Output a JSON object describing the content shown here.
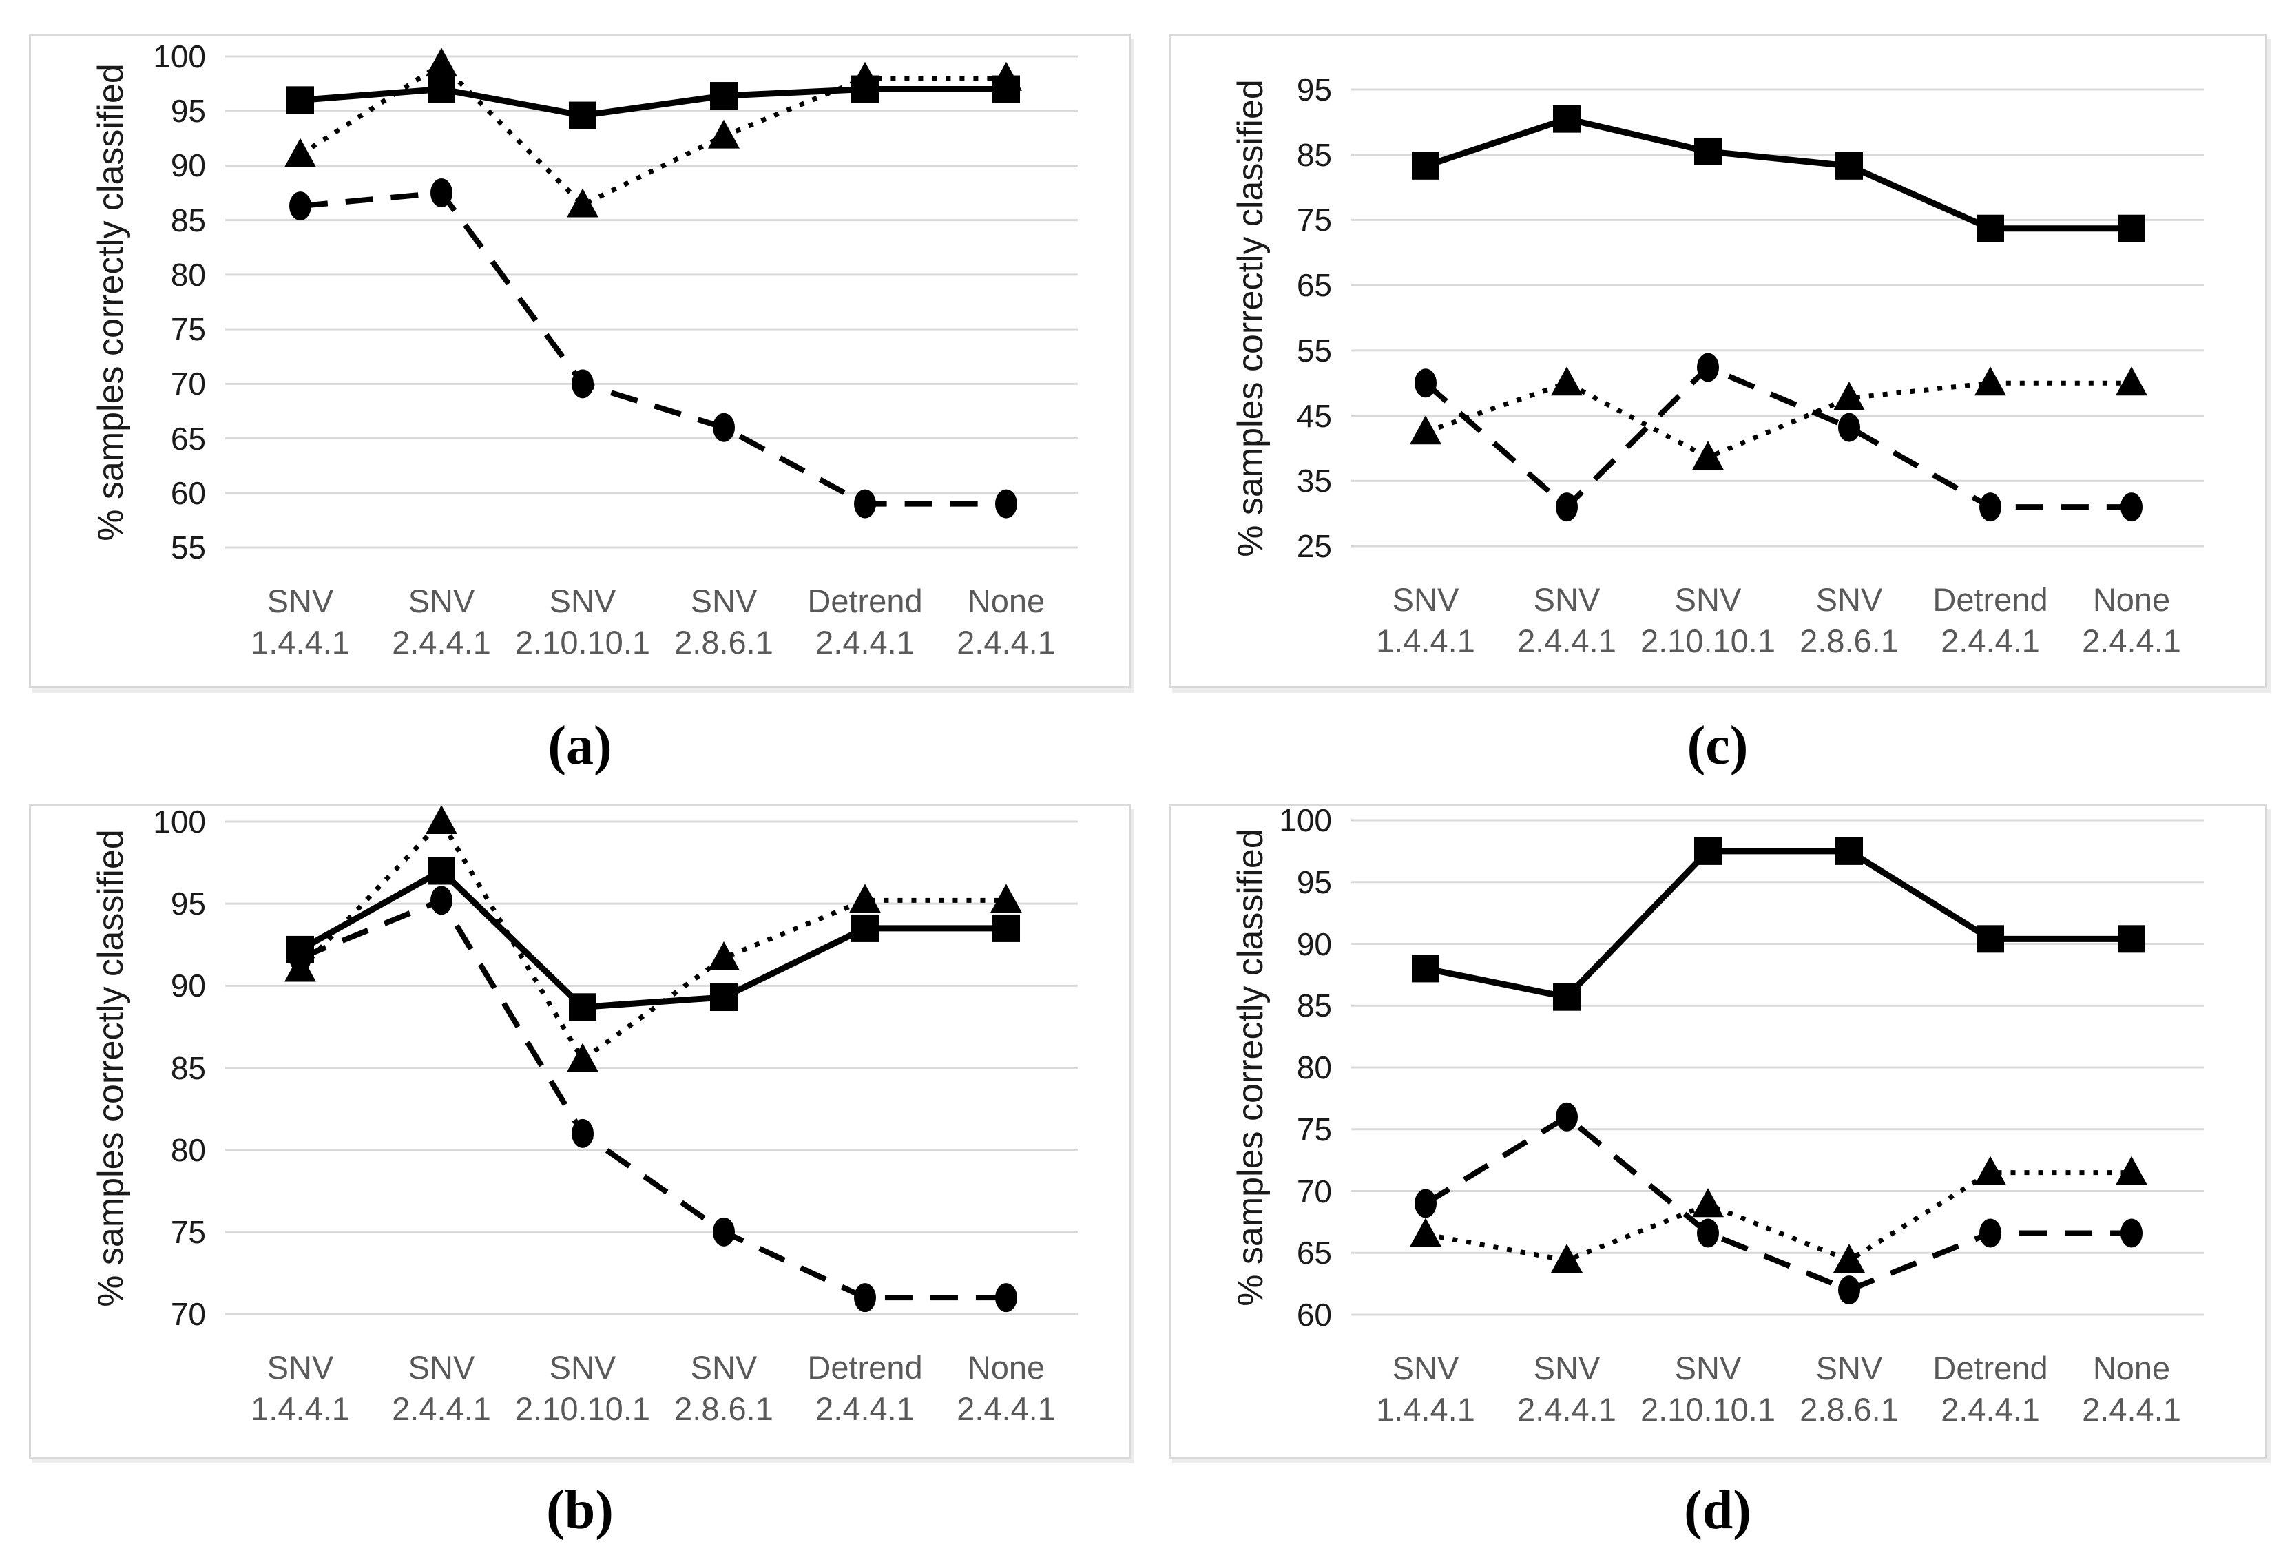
{
  "figure": {
    "ylabel": "% samples correctly classified",
    "background": "#ffffff",
    "line_color": "#000000",
    "gridline_color": "#d9d9d9",
    "xlabel_color": "#595959",
    "categories_display": [
      "SNV 1.4.4.1",
      "SNV 2.4.4.1",
      "SNV 2.10.10.1",
      "SNV 2.8.6.1",
      "Detrend 2.4.4.1",
      "None 2.4.4.1"
    ]
  },
  "chart_data": [
    {
      "id": "a",
      "type": "line",
      "caption": "(a)",
      "title": "",
      "xlabel": "",
      "ylabel": "% samples correctly classified",
      "categories": [
        [
          "SNV",
          "1.4.4.1"
        ],
        [
          "SNV",
          "2.4.4.1"
        ],
        [
          "SNV",
          "2.10.10.1"
        ],
        [
          "SNV",
          "2.8.6.1"
        ],
        [
          "Detrend",
          "2.4.4.1"
        ],
        [
          "None",
          "2.4.4.1"
        ]
      ],
      "ylim": [
        55,
        100
      ],
      "ytick_step": 5,
      "grid": true,
      "legend": "none",
      "series": [
        {
          "name": "dotted-triangle",
          "marker": "triangle",
          "line": "dotted",
          "values": [
            91,
            99.3,
            86.4,
            92.7,
            98,
            98
          ]
        },
        {
          "name": "dashed-circle",
          "marker": "circle",
          "line": "dashed",
          "values": [
            86.3,
            87.5,
            70,
            66,
            59,
            59
          ]
        },
        {
          "name": "solid-square",
          "marker": "square",
          "line": "solid",
          "values": [
            96,
            97,
            94.6,
            96.4,
            97,
            97
          ]
        }
      ]
    },
    {
      "id": "b",
      "type": "line",
      "caption": "(b)",
      "title": "",
      "xlabel": "",
      "ylabel": "% samples correctly classified",
      "categories": [
        [
          "SNV",
          "1.4.4.1"
        ],
        [
          "SNV",
          "2.4.4.1"
        ],
        [
          "SNV",
          "2.10.10.1"
        ],
        [
          "SNV",
          "2.8.6.1"
        ],
        [
          "Detrend",
          "2.4.4.1"
        ],
        [
          "None",
          "2.4.4.1"
        ]
      ],
      "ylim": [
        70,
        100
      ],
      "ytick_step": 5,
      "grid": true,
      "legend": "none",
      "series": [
        {
          "name": "dotted-triangle",
          "marker": "triangle",
          "line": "dotted",
          "values": [
            91,
            100,
            85.5,
            91.7,
            95.2,
            95.2
          ]
        },
        {
          "name": "dashed-circle",
          "marker": "circle",
          "line": "dashed",
          "values": [
            91.7,
            95.2,
            81,
            75,
            71,
            71
          ]
        },
        {
          "name": "solid-square",
          "marker": "square",
          "line": "solid",
          "values": [
            92.2,
            97,
            88.7,
            89.3,
            93.5,
            93.5
          ]
        }
      ]
    },
    {
      "id": "c",
      "type": "line",
      "caption": "(c)",
      "title": "",
      "xlabel": "",
      "ylabel": "% samples correctly classified",
      "categories": [
        [
          "SNV",
          "1.4.4.1"
        ],
        [
          "SNV",
          "2.4.4.1"
        ],
        [
          "SNV",
          "2.10.10.1"
        ],
        [
          "SNV",
          "2.8.6.1"
        ],
        [
          "Detrend",
          "2.4.4.1"
        ],
        [
          "None",
          "2.4.4.1"
        ]
      ],
      "ylim": [
        25,
        95
      ],
      "ytick_step": 10,
      "grid": true,
      "legend": "none",
      "series": [
        {
          "name": "dotted-triangle",
          "marker": "triangle",
          "line": "dotted",
          "values": [
            42.5,
            50,
            38.6,
            47.7,
            50,
            50
          ]
        },
        {
          "name": "dashed-circle",
          "marker": "circle",
          "line": "dashed",
          "values": [
            50,
            31,
            52.4,
            43.2,
            31,
            31
          ]
        },
        {
          "name": "solid-square",
          "marker": "square",
          "line": "solid",
          "values": [
            83.3,
            90.5,
            85.5,
            83.3,
            73.7,
            73.7
          ]
        }
      ]
    },
    {
      "id": "d",
      "type": "line",
      "caption": "(d)",
      "title": "",
      "xlabel": "",
      "ylabel": "% samples correctly classified",
      "categories": [
        [
          "SNV",
          "1.4.4.1"
        ],
        [
          "SNV",
          "2.4.4.1"
        ],
        [
          "SNV",
          "2.10.10.1"
        ],
        [
          "SNV",
          "2.8.6.1"
        ],
        [
          "Detrend",
          "2.4.4.1"
        ],
        [
          "None",
          "2.4.4.1"
        ]
      ],
      "ylim": [
        60,
        100
      ],
      "ytick_step": 5,
      "grid": true,
      "legend": "none",
      "series": [
        {
          "name": "dotted-triangle",
          "marker": "triangle",
          "line": "dotted",
          "values": [
            66.5,
            64.4,
            68.9,
            64.4,
            71.5,
            71.5
          ]
        },
        {
          "name": "dashed-circle",
          "marker": "circle",
          "line": "dashed",
          "values": [
            69,
            76,
            66.6,
            62,
            66.6,
            66.6
          ]
        },
        {
          "name": "solid-square",
          "marker": "square",
          "line": "solid",
          "values": [
            88,
            85.7,
            97.5,
            97.5,
            90.4,
            90.4
          ]
        }
      ]
    }
  ]
}
